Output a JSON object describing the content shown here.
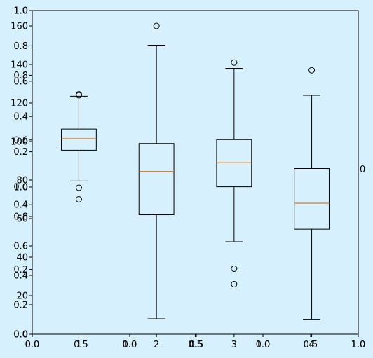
{
  "figure": {
    "background": "#d6f1fd"
  },
  "chart_data": {
    "type": "box",
    "categories": [
      "1",
      "2",
      "3",
      "4"
    ],
    "ylim": [
      0,
      168
    ],
    "yticks": [
      "0",
      "20",
      "40",
      "60",
      "80",
      "100",
      "120",
      "140",
      "160"
    ],
    "box_color": "#000000",
    "median_color": "#e07b22",
    "boxes": [
      {
        "label": "1",
        "whisker_low": 79.5,
        "q1": 95.5,
        "median": 101.5,
        "q3": 106.5,
        "whisker_high": 123.5,
        "fliers": [
          76,
          70,
          124.5,
          124
        ]
      },
      {
        "label": "2",
        "whisker_low": 8,
        "q1": 62,
        "median": 84.5,
        "q3": 99,
        "whisker_high": 150,
        "fliers": [
          160
        ]
      },
      {
        "label": "3",
        "whisker_low": 48,
        "q1": 76.5,
        "median": 89,
        "q3": 101,
        "whisker_high": 138,
        "fliers": [
          141,
          34,
          26
        ]
      },
      {
        "label": "4",
        "whisker_low": 7.5,
        "q1": 54.5,
        "median": 68,
        "q3": 86,
        "whisker_high": 124,
        "fliers": [
          137
        ]
      }
    ],
    "overlay_axes": {
      "y_ticks": [
        "0.0",
        "0.2",
        "0.4",
        "0.6",
        "0.8",
        "1.0"
      ],
      "x_ticks": [
        "0.0",
        "0.5",
        "1.0"
      ],
      "panels": [
        {
          "y_ticks": [
            "0.0",
            "0.2",
            "0.4",
            "0.6",
            "0.8",
            "1.0"
          ],
          "x_ticks": [
            "0.0",
            "0.5",
            "1.0"
          ]
        },
        {
          "y_ticks": [
            "0.0",
            "0.2",
            "0.4",
            "0.6",
            "0.8",
            "1.0"
          ],
          "x_ticks": [
            "0.0",
            "0.5",
            "1.0"
          ]
        },
        {
          "y_ticks": [
            "0.0",
            "0.2",
            "0.4",
            "0.6",
            "0.8",
            "1.0"
          ],
          "x_ticks": [
            "0.0",
            "0.5",
            "1.0"
          ]
        },
        {
          "y_ticks": [
            "0.0",
            "0.2",
            "0.4",
            "0.6",
            "0.8",
            "1.0"
          ],
          "x_ticks": [
            "0.0",
            "0.5",
            "1.0"
          ]
        }
      ],
      "right_edge_label": "0"
    }
  }
}
